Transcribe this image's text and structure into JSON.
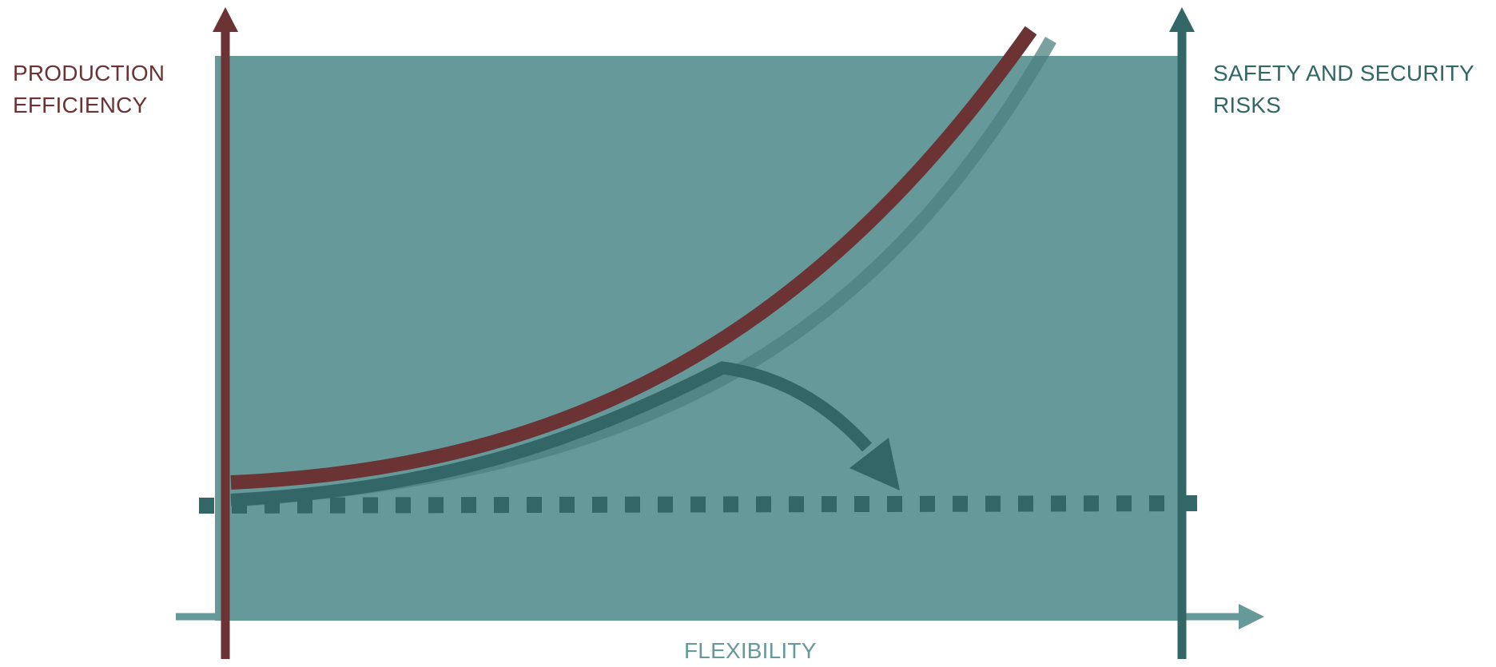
{
  "labels": {
    "left_axis": [
      "PRODUCTION",
      "EFFICIENCY"
    ],
    "right_axis": [
      "SAFETY AND SECURITY",
      "RISKS"
    ],
    "bottom_axis": "FLEXIBILITY"
  },
  "colors": {
    "background_panel": "#669999",
    "efficiency": "#6b3333",
    "risk": "#336666",
    "risk_faded": "#4d8080",
    "flexibility": "#669999",
    "background": "#ffffff"
  }
}
